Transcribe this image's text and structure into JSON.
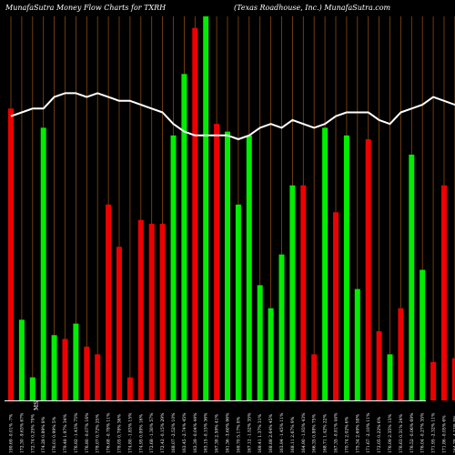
{
  "chart_data": {
    "type": "bar",
    "title_left": "MunafaSutra  Money Flow  Charts for TXRH",
    "title_right": "(Texas Roadhouse, Inc.) MunafaSutra.com",
    "colors": {
      "up": "#00ee00",
      "down": "#ee0000",
      "line": "#ffffff",
      "grid": "#8a4a10",
      "axis": "#ffffff",
      "background": "#000000",
      "text": "#ffffff"
    },
    "bar_scale": [
      0,
      100
    ],
    "line_scale": [
      0,
      100
    ],
    "categories": [
      "190.69 -0.01% -7%",
      "172.30 -9.63% 67%",
      "172.74 0.25% 79%",
      "174.28 0.89% 8%",
      "176.01 0.99% 5%",
      "179.48 1.97% 34%",
      "176.92 -1.43% 75%",
      "176.80 -0.07% 16%",
      "178.07 0.72% 25%",
      "176.68 -0.78% 11%",
      "178.05 0.78% 36%",
      "174.80 -1.83% 15%",
      "174.95 0.09% 16%",
      "172.68 -1.30% 57%",
      "172.42 -0.15% 29%",
      "168.07 -2.52% 10%",
      "163.45 -2.74% 45%",
      "163.39 -0.04% 44%",
      "163.15 -0.15% 36%",
      "167.38 2.59% 41%",
      "161.36 -3.60% 96%",
      "169.70 5.17% 8%",
      "167.12 -1.52% 35%",
      "169.41 1.37% 31%",
      "168.88 2.64% 45%",
      "163.94 -1.45% 11%",
      "168.11 2.67% 9%",
      "164.90 -1.93% 43%",
      "166.35 0.88% 75%",
      "168.71 1.42% 22%",
      "167.35 -0.81% 44%",
      "170.74 2.02% 6%",
      "175.34 2.69% 58%",
      "171.67 -2.10% 11%",
      "172.05 0.22% 6%",
      "176.09 2.35% 13%",
      "176.63 0.31% 24%",
      "176.52 -0.06% 69%",
      "176.04 -0.27% 35%",
      "171.95 -2.32% 11%",
      "171.86 -0.05% 6%",
      "164.78 -4.12% 5%",
      "168.68 2.37% 30%",
      "168.11 -0.34% 4%",
      "167.28 -0.49% 14%",
      "167.32 0.02% 23%",
      "162.11 -3.11% 6%"
    ],
    "values": [
      76,
      21,
      6,
      71,
      17,
      16,
      20,
      14,
      12,
      51,
      40,
      6,
      47,
      46,
      46,
      69,
      85,
      97,
      100,
      72,
      70,
      51,
      69,
      30,
      24,
      38,
      56,
      56,
      12,
      71,
      49,
      69,
      29,
      68,
      18,
      12,
      24,
      64,
      34,
      10,
      56,
      11,
      45,
      21,
      27,
      31,
      6
    ],
    "bar_colors": [
      "down",
      "up",
      "up",
      "up",
      "up",
      "down",
      "up",
      "down",
      "down",
      "down",
      "down",
      "down",
      "down",
      "down",
      "down",
      "up",
      "up",
      "down",
      "up",
      "down",
      "up",
      "up",
      "up",
      "up",
      "up",
      "up",
      "up",
      "down",
      "down",
      "up",
      "down",
      "up",
      "up",
      "down",
      "down",
      "up",
      "down",
      "up",
      "up",
      "down",
      "down",
      "down",
      "down",
      "down",
      "down",
      "down",
      "down"
    ],
    "line_values": [
      74,
      75,
      76,
      76,
      79,
      80,
      80,
      79,
      80,
      79,
      78,
      78,
      77,
      76,
      75,
      72,
      70,
      69,
      69,
      69,
      69,
      68,
      69,
      71,
      72,
      71,
      73,
      72,
      71,
      72,
      74,
      75,
      75,
      75,
      73,
      72,
      75,
      76,
      77,
      79,
      78,
      77,
      76,
      74,
      73,
      72,
      72
    ]
  }
}
